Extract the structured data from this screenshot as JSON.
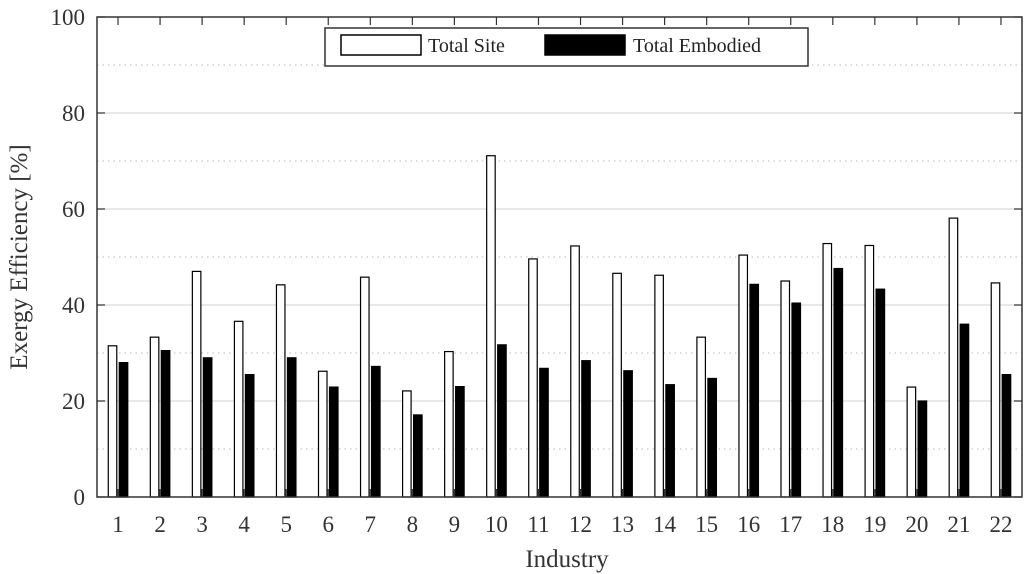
{
  "chart_data": {
    "type": "bar",
    "xlabel": "Industry",
    "ylabel": "Exergy Efficiency [%]",
    "ylim": [
      0,
      100
    ],
    "yticks": [
      0,
      20,
      40,
      60,
      80,
      100
    ],
    "grid": "major solid, minor dotted",
    "legend_position": "top-center",
    "categories": [
      "1",
      "2",
      "3",
      "4",
      "5",
      "6",
      "7",
      "8",
      "9",
      "10",
      "11",
      "12",
      "13",
      "14",
      "15",
      "16",
      "17",
      "18",
      "19",
      "20",
      "21",
      "22"
    ],
    "series": [
      {
        "name": "Total Site",
        "color": "#ffffff",
        "values": [
          31.5,
          33.3,
          47.0,
          36.6,
          44.2,
          26.2,
          45.8,
          22.1,
          30.3,
          71.1,
          49.6,
          52.3,
          46.6,
          46.2,
          33.3,
          50.4,
          45.0,
          52.8,
          52.4,
          22.9,
          58.1,
          44.6
        ]
      },
      {
        "name": "Total Embodied",
        "color": "#000000",
        "values": [
          28.0,
          30.5,
          29.0,
          25.5,
          29.0,
          22.9,
          27.2,
          17.1,
          23.0,
          31.7,
          26.8,
          28.4,
          26.3,
          23.4,
          24.7,
          44.3,
          40.4,
          47.6,
          43.3,
          20.0,
          36.0,
          25.5
        ]
      }
    ]
  }
}
